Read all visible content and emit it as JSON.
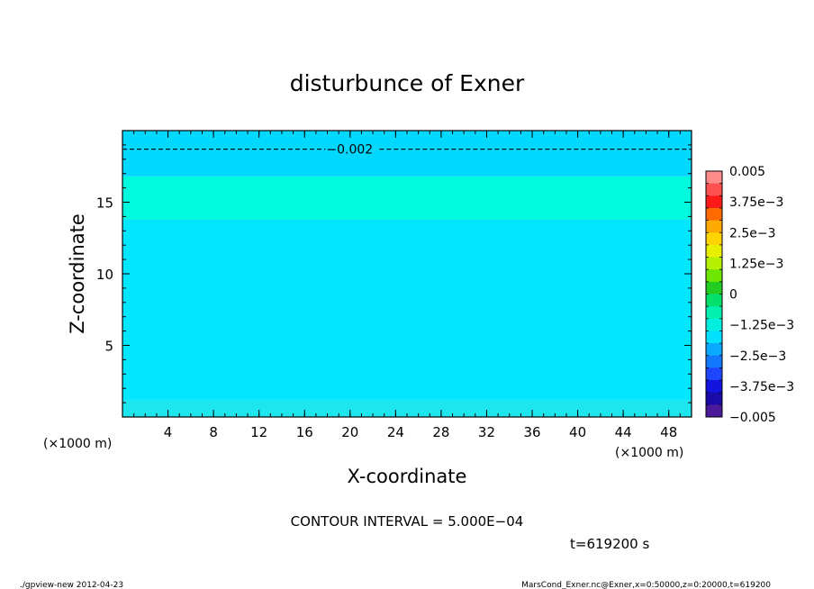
{
  "chart_data": {
    "type": "heatmap",
    "title": "disturbunce of Exner",
    "xlabel": "X-coordinate",
    "ylabel": "Z-coordinate",
    "x_unit": "(×1000 m)",
    "y_unit": "(×1000 m)",
    "xlim": [
      0,
      50
    ],
    "ylim": [
      0,
      20
    ],
    "x_ticks": [
      4,
      8,
      12,
      16,
      20,
      24,
      28,
      32,
      36,
      40,
      44,
      48
    ],
    "y_ticks": [
      5,
      10,
      15
    ],
    "x_tick_labels": [
      "4",
      "8",
      "12",
      "16",
      "20",
      "24",
      "28",
      "32",
      "36",
      "40",
      "44",
      "48"
    ],
    "y_tick_labels": [
      "5",
      "10",
      "15"
    ],
    "bands": [
      {
        "z_from": 0.0,
        "z_to": 1.2,
        "value": -0.00225,
        "color": "#1ee6ee"
      },
      {
        "z_from": 1.2,
        "z_to": 13.8,
        "value": -0.00275,
        "color": "#00e6ff"
      },
      {
        "z_from": 13.8,
        "z_to": 16.8,
        "value": -0.00225,
        "color": "#00fade"
      },
      {
        "z_from": 16.8,
        "z_to": 20.0,
        "value": -0.00275,
        "color": "#00d8ff"
      }
    ],
    "contours": [
      {
        "z": 18.7,
        "value": -0.002,
        "label": "−0.002",
        "label_x": 20.2,
        "style": "dashed"
      }
    ],
    "colorbar": {
      "labels": [
        "0.005",
        "3.75e−3",
        "2.5e−3",
        "1.25e−3",
        "0",
        "−1.25e−3",
        "−2.5e−3",
        "−3.75e−3",
        "−0.005"
      ],
      "colors": [
        "#ff8a8a",
        "#ff5050",
        "#ff1a1a",
        "#ff6a00",
        "#ffaa00",
        "#ffd400",
        "#e8f000",
        "#b4f000",
        "#6ee600",
        "#22cc22",
        "#00e06a",
        "#00f0b0",
        "#00eede",
        "#00e0ff",
        "#0aa8ff",
        "#1478ff",
        "#1e46ff",
        "#1414e0",
        "#1a0aa8",
        "#4a1a9a"
      ]
    },
    "contour_interval": "CONTOUR INTERVAL = 5.000E−04",
    "time_label": "t=619200 s",
    "footer_left": "./gpview-new   2012-04-23",
    "footer_right": "MarsCond_Exner.nc@Exner,x=0:50000,z=0:20000,t=619200"
  }
}
